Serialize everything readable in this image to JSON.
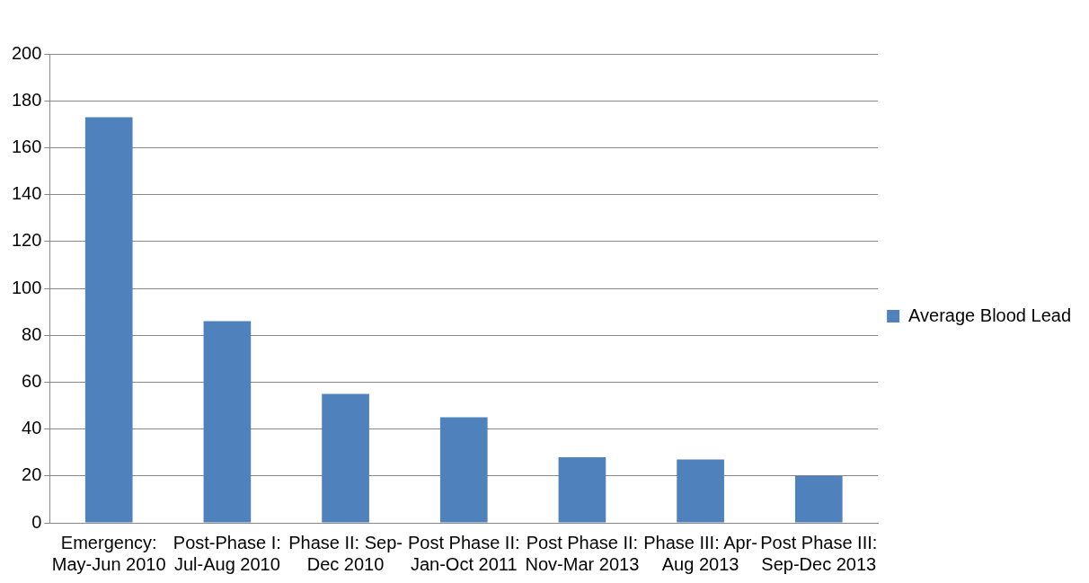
{
  "chart_data": {
    "type": "bar",
    "categories": [
      "Emergency: May-Jun 2010",
      "Post-Phase I: Jul-Aug 2010",
      "Phase II: Sep-Dec 2010",
      "Post Phase II: Jan-Oct 2011",
      "Post Phase II: Nov-Mar 2013",
      "Phase III: Apr-Aug 2013",
      "Post Phase III: Sep-Dec 2013"
    ],
    "series": [
      {
        "name": "Average Blood Lead",
        "color": "#4f81bd",
        "values": [
          173,
          86,
          55,
          45,
          28,
          27,
          20
        ]
      }
    ],
    "ylim": [
      0,
      200
    ],
    "yticks": [
      0,
      20,
      40,
      60,
      80,
      100,
      120,
      140,
      160,
      180,
      200
    ],
    "grid": "y",
    "legend": "right"
  }
}
